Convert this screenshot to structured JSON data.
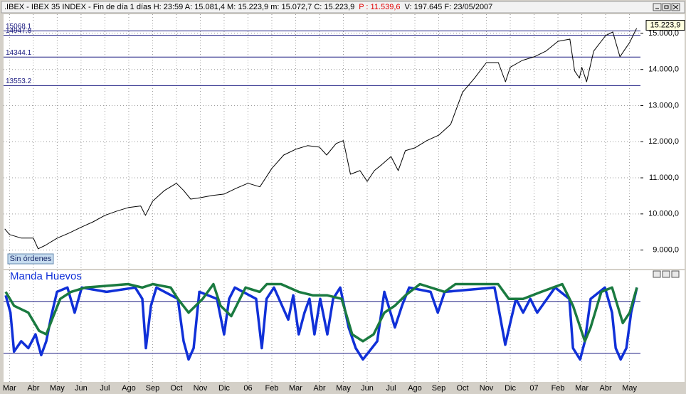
{
  "header": {
    "left": ".IBEX - IBEX 35 INDEX - Fin de día 1 días H: 23:59 A: 15.081,4 M: 15.223,9 m: 15.072,7 C: 15.223,9",
    "red": "P : 11.539,6",
    "right": "V: 197.645 F: 23/05/2007"
  },
  "button": "Sin órdenes",
  "chart_data": [
    {
      "type": "line",
      "color": "#000000",
      "level_color": "#1a1a80",
      "x": [
        -0.2,
        0,
        0.5,
        1,
        1.2,
        1.5,
        2,
        2.5,
        3,
        3.5,
        4,
        4.5,
        5,
        5.5,
        5.7,
        6,
        6.5,
        7,
        7.3,
        7.6,
        8,
        8.5,
        9,
        9.5,
        10,
        10.5,
        11,
        11.5,
        12,
        12.5,
        13,
        13.3,
        13.7,
        14,
        14.3,
        14.7,
        15,
        15.3,
        15.6,
        16,
        16.3,
        16.6,
        17,
        17.5,
        18,
        18.5,
        19,
        19.5,
        20,
        20.5,
        20.8,
        21,
        21.5,
        22,
        22.5,
        23,
        23.5,
        23.7,
        23.9,
        24,
        24.2,
        24.5,
        25,
        25.3,
        25.6,
        25.8,
        26,
        26.3
      ],
      "values": [
        9587,
        9430,
        9330,
        9330,
        9035,
        9130,
        9330,
        9470,
        9630,
        9780,
        9960,
        10080,
        10180,
        10220,
        9960,
        10350,
        10650,
        10850,
        10650,
        10410,
        10450,
        10510,
        10550,
        10710,
        10850,
        10750,
        11260,
        11630,
        11790,
        11890,
        11850,
        11630,
        11950,
        12030,
        11100,
        11200,
        10900,
        11200,
        11360,
        11590,
        11200,
        11750,
        11830,
        12030,
        12180,
        12480,
        13370,
        13760,
        14190,
        14190,
        13660,
        14060,
        14250,
        14350,
        14510,
        14780,
        14840,
        13960,
        13760,
        14060,
        13660,
        14510,
        14940,
        15040,
        14350,
        14550,
        14740,
        15140
      ],
      "xlim": [
        -0.25,
        26.46
      ],
      "ylim": [
        8480,
        15530
      ],
      "yticks": [
        {
          "value": 9000,
          "label": "9.000,0"
        },
        {
          "value": 10000,
          "label": "10.000,0"
        },
        {
          "value": 11000,
          "label": "11.000,0"
        },
        {
          "value": 12000,
          "label": "12.000,0"
        },
        {
          "value": 13000,
          "label": "13.000,0"
        },
        {
          "value": 14000,
          "label": "14.000,0"
        },
        {
          "value": 15000,
          "label": "15.000,0"
        }
      ],
      "levels": [
        15068.1,
        14947.8,
        14344.1,
        13553.2
      ],
      "last_price": {
        "value": 15223.9,
        "label": "15.223,9"
      },
      "grid": true
    },
    {
      "type": "line",
      "title": "Manda Huevos",
      "level_color": "#1a1a80",
      "xlim": [
        -0.25,
        26.46
      ],
      "ylim": [
        -13,
        116
      ],
      "levels": [
        80,
        20
      ],
      "xticks": [
        {
          "value": 0,
          "label": "Mar"
        },
        {
          "value": 1,
          "label": "Abr"
        },
        {
          "value": 2,
          "label": "May"
        },
        {
          "value": 3,
          "label": "Jun"
        },
        {
          "value": 4,
          "label": "Jul"
        },
        {
          "value": 5,
          "label": "Ago"
        },
        {
          "value": 6,
          "label": "Sep"
        },
        {
          "value": 7,
          "label": "Oct"
        },
        {
          "value": 8,
          "label": "Nov"
        },
        {
          "value": 9,
          "label": "Dic"
        },
        {
          "value": 10,
          "label": "06"
        },
        {
          "value": 11,
          "label": "Feb"
        },
        {
          "value": 12,
          "label": "Mar"
        },
        {
          "value": 13,
          "label": "Abr"
        },
        {
          "value": 14,
          "label": "May"
        },
        {
          "value": 15,
          "label": "Jun"
        },
        {
          "value": 16,
          "label": "Jul"
        },
        {
          "value": 17,
          "label": "Ago"
        },
        {
          "value": 18,
          "label": "Sep"
        },
        {
          "value": 19,
          "label": "Oct"
        },
        {
          "value": 20,
          "label": "Nov"
        },
        {
          "value": 21,
          "label": "Dic"
        },
        {
          "value": 22,
          "label": "07"
        },
        {
          "value": 23,
          "label": "Feb"
        },
        {
          "value": 24,
          "label": "Mar"
        },
        {
          "value": 25,
          "label": "Abr"
        },
        {
          "value": 26,
          "label": "May"
        }
      ],
      "series": [
        {
          "color": "#1030d8",
          "x": [
            -0.16,
            0.04,
            0.19,
            0.49,
            0.79,
            1.09,
            1.33,
            1.54,
            1.75,
            1.99,
            2.43,
            2.73,
            3.03,
            4.07,
            5.27,
            5.57,
            5.72,
            5.93,
            6.16,
            7.06,
            7.3,
            7.51,
            7.72,
            7.96,
            8.7,
            9,
            9.21,
            9.45,
            10.34,
            10.58,
            10.78,
            11.09,
            11.69,
            11.9,
            12.13,
            12.37,
            12.58,
            12.79,
            13.03,
            13.33,
            13.57,
            13.87,
            14.22,
            14.52,
            14.82,
            15.42,
            15.72,
            16.16,
            16.46,
            16.76,
            17.66,
            17.96,
            18.25,
            20.34,
            20.49,
            20.79,
            21.03,
            21.24,
            21.54,
            21.84,
            22.13,
            22.88,
            23.48,
            23.63,
            23.93,
            24.13,
            24.37,
            24.97,
            25.27,
            25.42,
            25.63,
            25.87,
            26.07,
            26.31
          ],
          "values": [
            87,
            67,
            22,
            34,
            26,
            42,
            18,
            34,
            63,
            91,
            96,
            67,
            96,
            91,
            96,
            83,
            26,
            75,
            96,
            83,
            34,
            13,
            26,
            91,
            83,
            42,
            83,
            96,
            83,
            26,
            83,
            96,
            59,
            87,
            42,
            67,
            83,
            42,
            83,
            42,
            83,
            96,
            50,
            26,
            13,
            34,
            91,
            50,
            75,
            96,
            91,
            67,
            91,
            96,
            75,
            30,
            59,
            83,
            67,
            83,
            67,
            96,
            83,
            26,
            13,
            34,
            83,
            96,
            67,
            26,
            13,
            26,
            67,
            96
          ]
        },
        {
          "color": "#1a7a40",
          "x": [
            -0.16,
            0.19,
            0.79,
            1.24,
            1.54,
            1.84,
            2.13,
            2.58,
            3.18,
            4.97,
            5.57,
            6.01,
            6.76,
            7.06,
            7.51,
            8.1,
            8.55,
            8.85,
            9.3,
            9.9,
            10.49,
            10.79,
            11.39,
            12.13,
            12.73,
            13.33,
            13.93,
            14.37,
            14.82,
            15.27,
            15.72,
            16.16,
            16.61,
            17.21,
            18.25,
            18.7,
            20.49,
            20.94,
            21.54,
            22.3,
            23.18,
            23.63,
            24.13,
            24.37,
            24.82,
            25.27,
            25.72,
            26.01,
            26.31
          ],
          "values": [
            91,
            75,
            67,
            46,
            42,
            63,
            83,
            91,
            96,
            100,
            96,
            100,
            96,
            83,
            67,
            83,
            100,
            75,
            63,
            96,
            91,
            100,
            100,
            91,
            87,
            87,
            83,
            42,
            34,
            42,
            67,
            75,
            87,
            100,
            91,
            100,
            100,
            83,
            83,
            91,
            100,
            75,
            34,
            50,
            91,
            96,
            55,
            67,
            96
          ]
        }
      ]
    }
  ]
}
